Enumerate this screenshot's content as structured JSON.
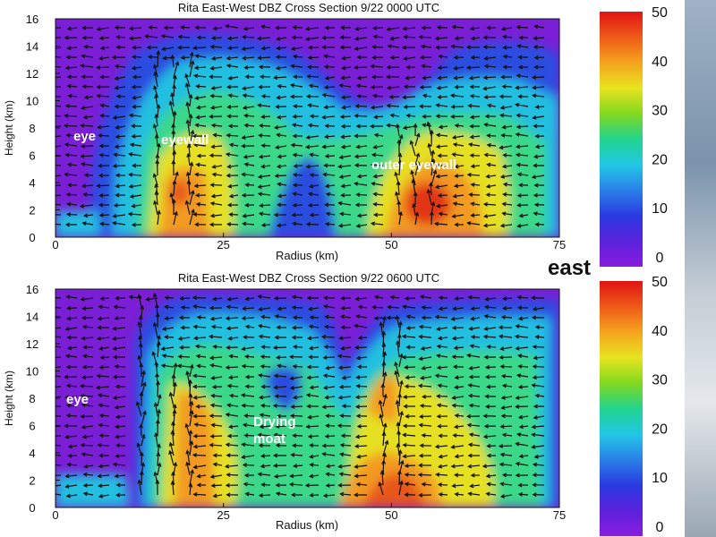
{
  "east_label": "east",
  "colorbar_ticks": [
    "50",
    "40",
    "30",
    "20",
    "10",
    "0"
  ],
  "colors": {
    "background": "#7a1fd6",
    "scale": [
      "#6a1fd0",
      "#3340d8",
      "#2a7fe0",
      "#20c8e0",
      "#2ed68a",
      "#8ad820",
      "#e8e020",
      "#f4a020",
      "#ec5a18",
      "#e01818"
    ]
  },
  "chart_data": [
    {
      "type": "heatmap",
      "title": "Rita East-West DBZ Cross Section 9/22 0000 UTC",
      "xlabel": "Radius (km)",
      "ylabel": "Height (km)",
      "xlim": [
        0,
        75
      ],
      "ylim": [
        0,
        16
      ],
      "xticks": [
        "0",
        "25",
        "50",
        "75"
      ],
      "yticks": [
        "0",
        "2",
        "4",
        "6",
        "8",
        "10",
        "12",
        "14",
        "16"
      ],
      "colorbar": {
        "min": 0,
        "max": 50,
        "unit": "dBZ"
      },
      "annotations": [
        {
          "text": "eye",
          "x": 5,
          "y": 7.3
        },
        {
          "text": "eyewall",
          "x": 16,
          "y": 7.0
        },
        {
          "text": "outer eyewall",
          "x": 47,
          "y": 5.0
        }
      ],
      "echo_cores": [
        {
          "x": 18,
          "y": 5,
          "dbz": 46
        },
        {
          "x": 55,
          "y": 3,
          "dbz": 50
        }
      ]
    },
    {
      "type": "heatmap",
      "title": "Rita East-West DBZ Cross Section 9/22 0600 UTC",
      "xlabel": "Radius (km)",
      "ylabel": "Height (km)",
      "xlim": [
        0,
        75
      ],
      "ylim": [
        0,
        16
      ],
      "xticks": [
        "0",
        "25",
        "50",
        "75"
      ],
      "yticks": [
        "0",
        "2",
        "4",
        "6",
        "8",
        "10",
        "12",
        "14",
        "16"
      ],
      "colorbar": {
        "min": 0,
        "max": 50,
        "unit": "dBZ"
      },
      "annotations": [
        {
          "text": "eye",
          "x": 2,
          "y": 7.6
        },
        {
          "text": "Drying moat",
          "x": 29,
          "y": 5.5
        }
      ],
      "echo_cores": [
        {
          "x": 20,
          "y": 6,
          "dbz": 42
        },
        {
          "x": 48,
          "y": 8,
          "dbz": 44
        },
        {
          "x": 47,
          "y": 2,
          "dbz": 46
        }
      ]
    }
  ]
}
